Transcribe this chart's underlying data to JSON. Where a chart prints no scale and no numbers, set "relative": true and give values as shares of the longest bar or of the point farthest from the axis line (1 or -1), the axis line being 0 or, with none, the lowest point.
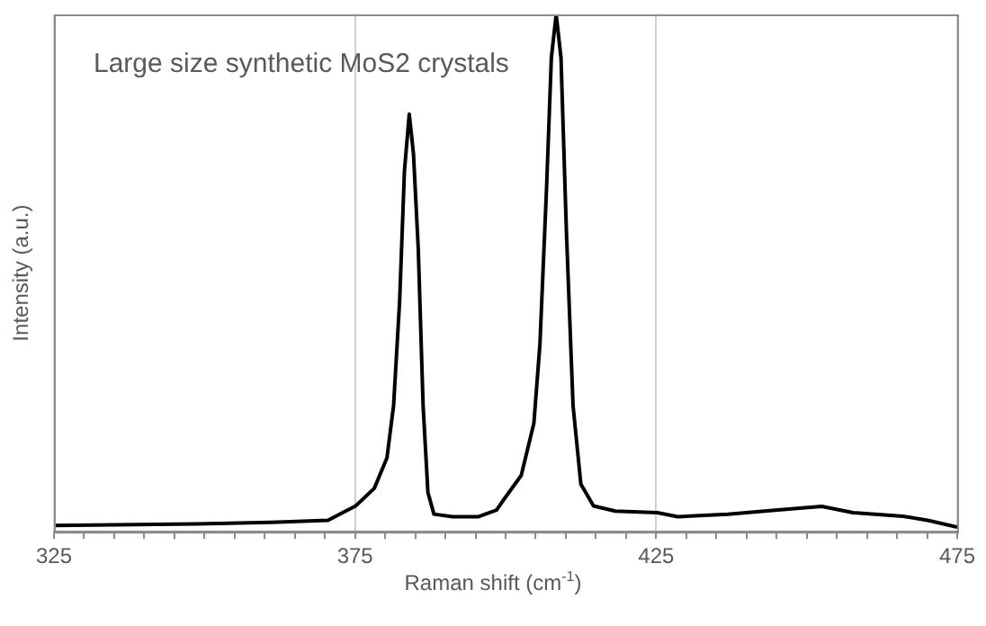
{
  "chart_data": {
    "type": "line",
    "title": "Large size synthetic MoS2 crystals",
    "xlabel": "Raman shift (cm$^{-1}$)",
    "ylabel": "Intensity (a.u.)",
    "relative": true,
    "xlim": [
      325,
      475
    ],
    "xticks": [
      325,
      {
        "value": 330,
        "label": null
      },
      {
        "value": 335,
        "label": null
      },
      {
        "value": 340,
        "label": null
      },
      {
        "value": 345,
        "label": null
      },
      {
        "value": 350,
        "label": null
      },
      {
        "value": 355,
        "label": null
      },
      {
        "value": 360,
        "label": null
      },
      {
        "value": 365,
        "label": null
      },
      {
        "value": 370,
        "label": null
      },
      375,
      {
        "value": 380,
        "label": null
      },
      {
        "value": 385,
        "label": null
      },
      {
        "value": 390,
        "label": null
      },
      {
        "value": 395,
        "label": null
      },
      {
        "value": 400,
        "label": null
      },
      {
        "value": 405,
        "label": null
      },
      {
        "value": 410,
        "label": null
      },
      {
        "value": 415,
        "label": null
      },
      {
        "value": 420,
        "label": null
      },
      425,
      {
        "value": 430,
        "label": null
      },
      {
        "value": 435,
        "label": null
      },
      {
        "value": 440,
        "label": null
      },
      {
        "value": 445,
        "label": null
      },
      {
        "value": 450,
        "label": null
      },
      {
        "value": 455,
        "label": null
      },
      {
        "value": 460,
        "label": null
      },
      {
        "value": 465,
        "label": null
      },
      {
        "value": 470,
        "label": null
      },
      475
    ],
    "grid": "x",
    "marker": "none",
    "line_style": "solid",
    "x": [
      325,
      348.7,
      361.1,
      370.5,
      375.1,
      378.2,
      380.3,
      381.4,
      382.4,
      383.2,
      384.0,
      384.7,
      385.5,
      386.3,
      387.1,
      388.1,
      391.2,
      395.4,
      398.5,
      399.5,
      402.6,
      404.7,
      405.7,
      406.8,
      407.6,
      408.4,
      409.2,
      410.1,
      411.2,
      412.5,
      414.6,
      418.2,
      425.2,
      428.6,
      436.9,
      445.2,
      452.5,
      457.7,
      466.0,
      470.1,
      475
    ],
    "series": [
      {
        "color": "#000000",
        "values": [
          0.012,
          0.015,
          0.018,
          0.022,
          0.05,
          0.084,
          0.143,
          0.244,
          0.445,
          0.697,
          0.807,
          0.731,
          0.546,
          0.244,
          0.076,
          0.034,
          0.029,
          0.029,
          0.042,
          0.059,
          0.109,
          0.21,
          0.362,
          0.664,
          0.916,
          1,
          0.916,
          0.58,
          0.244,
          0.092,
          0.05,
          0.04,
          0.037,
          0.029,
          0.034,
          0.042,
          0.049,
          0.037,
          0.03,
          0.022,
          0.009
        ]
      }
    ]
  }
}
